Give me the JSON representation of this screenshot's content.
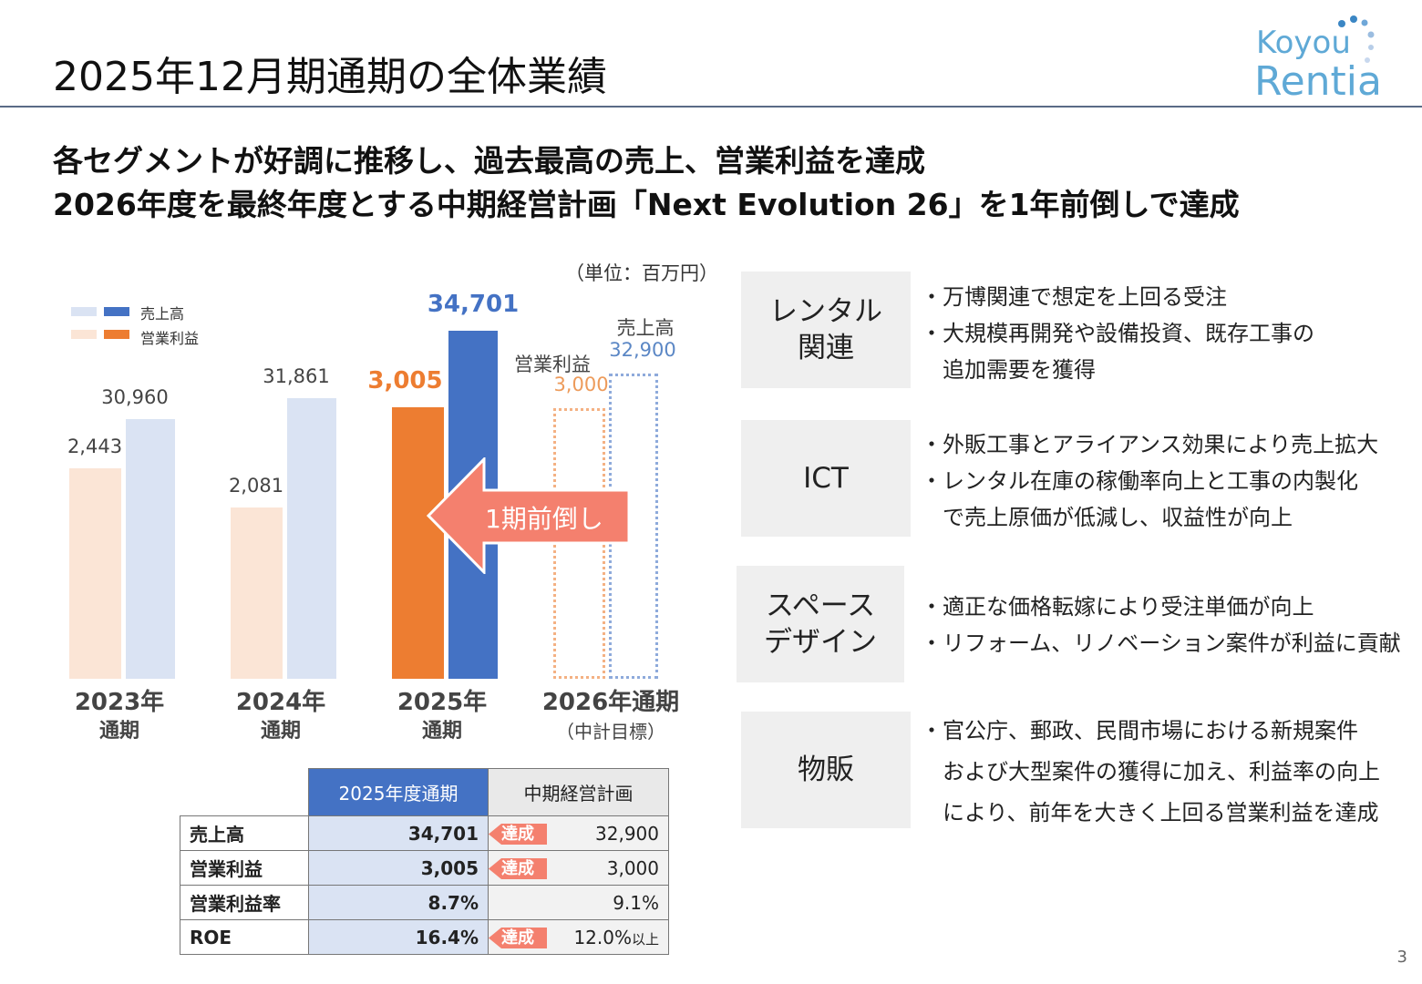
{
  "title": "2025年12月期通期の全体業績",
  "logo": {
    "line1": "Koyou",
    "line2": "Rentia"
  },
  "lead": [
    "各セグメントが好調に推移し、過去最高の売上、営業利益を達成",
    "2026年度を最終年度とする中期経営計画「Next Evolution 26」を1年前倒しで達成"
  ],
  "unit": "（単位：百万円）",
  "legend": {
    "sales": "売上高",
    "profit": "営業利益"
  },
  "arrow_label": "1期前倒し",
  "colors": {
    "sales": "#4472c4",
    "sales_light": "#dae3f3",
    "profit": "#ed7d31",
    "profit_light": "#fbe5d6",
    "arrow": "#f4806e"
  },
  "chart_data": {
    "type": "bar",
    "categories": [
      "2023年通期",
      "2024年通期",
      "2025年通期",
      "2026年通期（中計目標）"
    ],
    "series": [
      {
        "name": "営業利益",
        "values": [
          2443,
          2081,
          3005,
          3000
        ],
        "labels": [
          "2,443",
          "2,081",
          "3,005",
          "3,000"
        ]
      },
      {
        "name": "売上高",
        "values": [
          30960,
          31861,
          34701,
          32900
        ],
        "labels": [
          "30,960",
          "31,861",
          "34,701",
          "32,900"
        ]
      }
    ],
    "x_labels": [
      {
        "a": "2023年",
        "b": "通期"
      },
      {
        "a": "2024年",
        "b": "通期"
      },
      {
        "a": "2025年",
        "b": "通期"
      },
      {
        "a": "2026年通期",
        "b": "（中計目標）"
      }
    ],
    "target_labels": {
      "profit": "営業利益",
      "sales": "売上高"
    },
    "ylabel": "百万円"
  },
  "table": {
    "headers": [
      "",
      "2025年度通期",
      "中期経営計画"
    ],
    "rows": [
      {
        "label": "売上高",
        "actual": "34,701",
        "tag": "達成",
        "plan": "32,900"
      },
      {
        "label": "営業利益",
        "actual": "3,005",
        "tag": "達成",
        "plan": "3,000"
      },
      {
        "label": "営業利益率",
        "actual": "8.7%",
        "tag": "",
        "plan": "9.1%"
      },
      {
        "label": "ROE",
        "actual": "16.4%",
        "tag": "達成",
        "plan": "12.0%",
        "plan_suffix": "以上"
      }
    ]
  },
  "segments": [
    {
      "name": "レンタル\n関連",
      "points": [
        "・万博関連で想定を上回る受注",
        "・大規模再開発や設備投資、既存工事の",
        "　追加需要を獲得"
      ]
    },
    {
      "name": "ICT",
      "points": [
        "・外販工事とアライアンス効果により売上拡大",
        "・レンタル在庫の稼働率向上と工事の内製化",
        "　で売上原価が低減し、収益性が向上"
      ]
    },
    {
      "name": "スペース\nデザイン",
      "points": [
        "・適正な価格転嫁により受注単価が向上",
        "・リフォーム、リノベーション案件が利益に貢献"
      ]
    },
    {
      "name": "物販",
      "points": [
        "・官公庁、郵政、民間市場における新規案件",
        "　および大型案件の獲得に加え、利益率の向上",
        "　により、前年を大きく上回る営業利益を達成"
      ]
    }
  ],
  "page": "3"
}
